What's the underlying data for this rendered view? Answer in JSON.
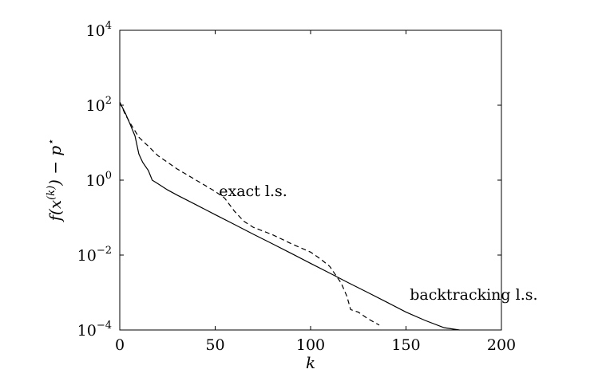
{
  "chart_data": {
    "type": "line",
    "title": "",
    "xlabel": "k",
    "ylabel": "f(x^(k)) − p*",
    "xlim": [
      0,
      200
    ],
    "ylim": [
      0.0001,
      10000
    ],
    "yscale": "log",
    "grid": false,
    "x_ticks": [
      {
        "value": 0,
        "label": "0"
      },
      {
        "value": 50,
        "label": "50"
      },
      {
        "value": 100,
        "label": "100"
      },
      {
        "value": 150,
        "label": "150"
      },
      {
        "value": 200,
        "label": "200"
      }
    ],
    "y_ticks": [
      {
        "value": 0.0001,
        "base": "10",
        "exp": "−4"
      },
      {
        "value": 0.01,
        "base": "10",
        "exp": "−2"
      },
      {
        "value": 1,
        "base": "10",
        "exp": "0"
      },
      {
        "value": 100,
        "base": "10",
        "exp": "2"
      },
      {
        "value": 10000,
        "base": "10",
        "exp": "4"
      }
    ],
    "series": [
      {
        "name": "backtracking l.s.",
        "style": "solid",
        "color": "#000000",
        "points": [
          [
            0,
            120
          ],
          [
            3,
            60
          ],
          [
            5,
            35
          ],
          [
            8,
            15
          ],
          [
            10,
            5
          ],
          [
            12,
            3
          ],
          [
            15,
            1.8
          ],
          [
            17,
            1.0
          ],
          [
            20,
            0.8
          ],
          [
            25,
            0.55
          ],
          [
            30,
            0.4
          ],
          [
            40,
            0.22
          ],
          [
            50,
            0.12
          ],
          [
            60,
            0.066
          ],
          [
            70,
            0.036
          ],
          [
            80,
            0.02
          ],
          [
            90,
            0.011
          ],
          [
            100,
            0.006
          ],
          [
            110,
            0.0033
          ],
          [
            120,
            0.0018
          ],
          [
            130,
            0.001
          ],
          [
            140,
            0.00055
          ],
          [
            150,
            0.0003
          ],
          [
            160,
            0.00018
          ],
          [
            170,
            0.000115
          ],
          [
            178,
            0.0001
          ]
        ]
      },
      {
        "name": "exact l.s.",
        "style": "dashed",
        "color": "#000000",
        "points": [
          [
            0,
            120
          ],
          [
            3,
            55
          ],
          [
            6,
            30
          ],
          [
            10,
            14
          ],
          [
            15,
            8
          ],
          [
            20,
            4.5
          ],
          [
            30,
            2.0
          ],
          [
            40,
            1.0
          ],
          [
            50,
            0.5
          ],
          [
            55,
            0.33
          ],
          [
            60,
            0.15
          ],
          [
            65,
            0.08
          ],
          [
            70,
            0.055
          ],
          [
            80,
            0.035
          ],
          [
            90,
            0.02
          ],
          [
            100,
            0.012
          ],
          [
            105,
            0.008
          ],
          [
            110,
            0.005
          ],
          [
            113,
            0.003
          ],
          [
            116,
            0.0018
          ],
          [
            119,
            0.0008
          ],
          [
            121,
            0.00035
          ],
          [
            125,
            0.0003
          ],
          [
            130,
            0.0002
          ],
          [
            136,
            0.000135
          ]
        ]
      }
    ],
    "annotations": [
      {
        "text": "exact l.s.",
        "x": 52,
        "y": 0.38
      },
      {
        "text": "backtracking l.s.",
        "x": 152,
        "y": 0.00065
      }
    ]
  }
}
